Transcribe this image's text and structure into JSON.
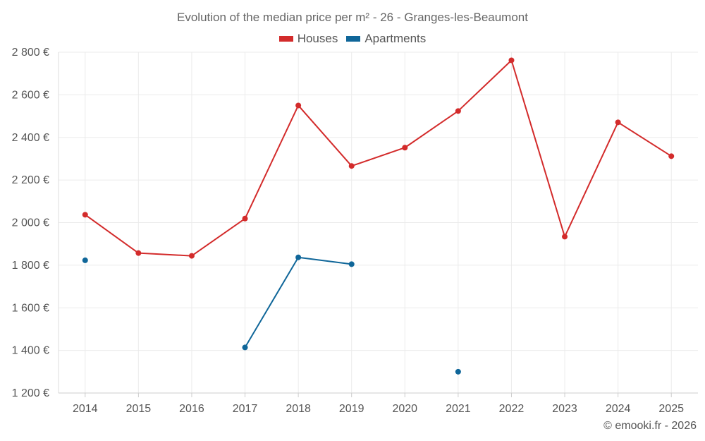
{
  "chart_data": {
    "type": "line",
    "title": "Evolution of the median price per m² - 26 - Granges-les-Beaumont",
    "xlabel": "",
    "ylabel": "",
    "x": [
      2014,
      2015,
      2016,
      2017,
      2018,
      2019,
      2020,
      2021,
      2022,
      2023,
      2024,
      2025
    ],
    "x_tick_labels": [
      "2014",
      "2015",
      "2016",
      "2017",
      "2018",
      "2019",
      "2020",
      "2021",
      "2022",
      "2023",
      "2024",
      "2025"
    ],
    "ylim": [
      1200,
      2800
    ],
    "y_ticks": [
      1200,
      1400,
      1600,
      1800,
      2000,
      2200,
      2400,
      2600,
      2800
    ],
    "y_tick_labels": [
      "1 200 €",
      "1 400 €",
      "1 600 €",
      "1 800 €",
      "2 000 €",
      "2 200 €",
      "2 400 €",
      "2 600 €",
      "2 800 €"
    ],
    "grid": true,
    "legend_position": "top-center",
    "series": [
      {
        "name": "Houses",
        "color": "#d32b2b",
        "values": [
          2037,
          1857,
          1844,
          2019,
          2550,
          2266,
          2352,
          2524,
          2762,
          1934,
          2471,
          2312
        ]
      },
      {
        "name": "Apartments",
        "color": "#0f6699",
        "values": [
          1823,
          null,
          null,
          1414,
          1837,
          1805,
          null,
          1300,
          null,
          null,
          null,
          null
        ]
      }
    ]
  },
  "credit": "© emooki.fr - 2026"
}
